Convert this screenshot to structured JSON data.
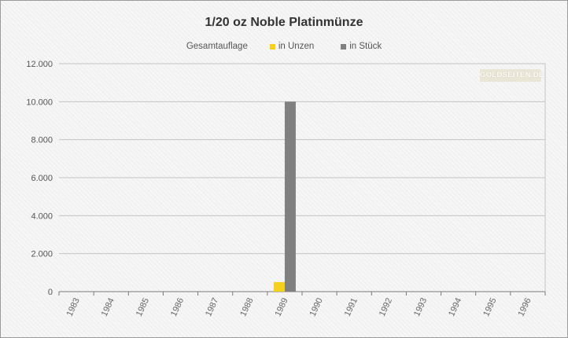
{
  "chart_data": {
    "type": "bar",
    "title": "1/20 oz Noble Platinmünze",
    "legend_title": "Gesamtauflage",
    "legend_position": "top",
    "grid": true,
    "categories": [
      "1983",
      "1984",
      "1985",
      "1986",
      "1987",
      "1988",
      "1989",
      "1990",
      "1991",
      "1992",
      "1993",
      "1994",
      "1995",
      "1996"
    ],
    "series": [
      {
        "name": "in Unzen",
        "color": "#f5d11d",
        "values": [
          0,
          0,
          0,
          0,
          0,
          0,
          500,
          0,
          0,
          0,
          0,
          0,
          0,
          0
        ]
      },
      {
        "name": "in Stück",
        "color": "#808080",
        "values": [
          0,
          0,
          0,
          0,
          0,
          0,
          10000,
          0,
          0,
          0,
          0,
          0,
          0,
          0
        ]
      }
    ],
    "ylim": [
      0,
      12000
    ],
    "yticks": [
      0,
      2000,
      4000,
      6000,
      8000,
      10000,
      12000
    ],
    "ytick_labels": [
      "0",
      "2.000",
      "4.000",
      "6.000",
      "8.000",
      "10.000",
      "12.000"
    ]
  },
  "watermark": "GOLDSEITEN.DE"
}
